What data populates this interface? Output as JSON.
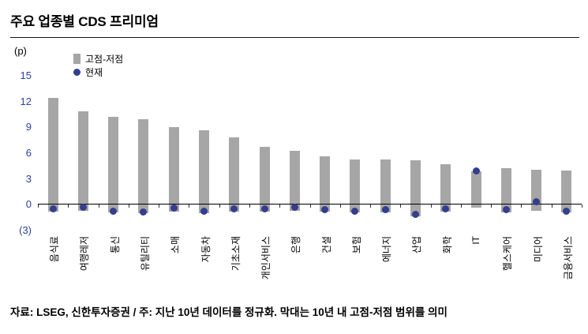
{
  "title": "주요 업종별 CDS 프리미엄",
  "y_axis_unit": "(p)",
  "legend": {
    "range_label": "고점-저점",
    "current_label": "현재"
  },
  "footer": "자료: LSEG, 신한투자증권 / 주: 지난 10년 데이터를 정규화. 막대는 10년 내 고점-저점 범위를 의미",
  "colors": {
    "bar": "#a6a6a6",
    "dot": "#333e8f",
    "tick_label": "#2b3f9e",
    "axis_line": "#000000"
  },
  "chart_data": {
    "type": "bar",
    "subtype": "floating-range-bars-with-point-markers",
    "title": "주요 업종별 CDS 프리미엄",
    "xlabel": "",
    "ylabel": "(p)",
    "ylim": [
      -3,
      15
    ],
    "yticks": [
      15,
      12,
      9,
      6,
      3,
      0,
      -3
    ],
    "ytick_labels": [
      "15",
      "12",
      "9",
      "6",
      "3",
      "0",
      "(3)"
    ],
    "grid": false,
    "legend_position": "top-left-inside",
    "categories": [
      "음식료",
      "여행레저",
      "통신",
      "유틸리티",
      "소매",
      "자동차",
      "기초소재",
      "개인서비스",
      "은행",
      "건설",
      "보험",
      "에너지",
      "산업",
      "화학",
      "IT",
      "헬스케어",
      "미디어",
      "금융서비스"
    ],
    "series": [
      {
        "name": "고점-저점",
        "type": "range",
        "high": [
          12.3,
          10.8,
          10.1,
          9.9,
          8.9,
          8.6,
          7.7,
          6.6,
          6.2,
          5.5,
          5.2,
          5.2,
          5.1,
          4.6,
          3.8,
          4.2,
          4.0,
          3.9
        ],
        "low": [
          -0.9,
          -0.8,
          -1.0,
          -1.1,
          -0.9,
          -1.1,
          -0.9,
          -0.9,
          -0.8,
          -0.9,
          -1.0,
          -1.0,
          -1.4,
          -0.9,
          -0.4,
          -1.0,
          -0.8,
          -1.0
        ]
      },
      {
        "name": "현재",
        "type": "point",
        "values": [
          -0.6,
          -0.4,
          -0.8,
          -0.9,
          -0.5,
          -0.8,
          -0.6,
          -0.6,
          -0.4,
          -0.7,
          -0.8,
          -0.7,
          -1.2,
          -0.6,
          3.8,
          -0.7,
          0.3,
          -0.8
        ]
      }
    ]
  }
}
